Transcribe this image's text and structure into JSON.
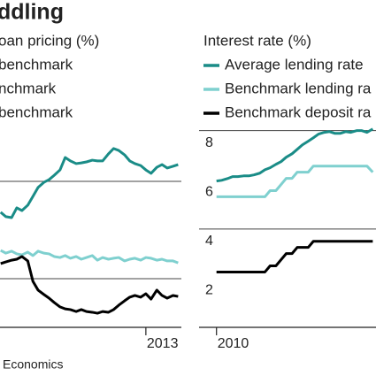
{
  "chart_data": [
    {
      "type": "line",
      "title": "ddling",
      "subtitle": "oan pricing (%)",
      "source": "Economics",
      "x": [
        2010.75,
        2010.83,
        2010.92,
        2011,
        2011.08,
        2011.17,
        2011.25,
        2011.33,
        2011.42,
        2011.5,
        2011.58,
        2011.67,
        2011.75,
        2011.83,
        2011.92,
        2012,
        2012.08,
        2012.17,
        2012.25,
        2012.33,
        2012.42,
        2012.5,
        2012.58,
        2012.67,
        2012.75,
        2012.83,
        2012.92,
        2013,
        2013.08,
        2013.17,
        2013.25,
        2013.33,
        2013.42,
        2013.5
      ],
      "series": [
        {
          "name": "benchmark",
          "color": "#1a8c87",
          "values": [
            47.3,
            45.5,
            45.1,
            49.1,
            48.0,
            50.2,
            53.8,
            57.5,
            59.6,
            60.7,
            62.5,
            64.7,
            69.8,
            68.4,
            67.3,
            67.6,
            68.0,
            68.7,
            68.4,
            68.4,
            71.3,
            73.5,
            72.7,
            70.9,
            68.4,
            67.3,
            66.5,
            64.7,
            63.3,
            65.8,
            66.9,
            65.5,
            66.2,
            66.9
          ]
        },
        {
          "name": "nchmark",
          "color": "#7fd0cf",
          "values": [
            31.6,
            30.5,
            31.3,
            30.2,
            29.8,
            30.9,
            29.5,
            31.3,
            30.5,
            30.2,
            29.1,
            28.7,
            29.5,
            28.4,
            29.1,
            28.0,
            28.7,
            29.5,
            27.6,
            28.7,
            28.0,
            28.4,
            28.7,
            27.3,
            28.0,
            28.4,
            27.6,
            28.7,
            28.4,
            27.6,
            28.0,
            27.3,
            27.3,
            26.5
          ]
        },
        {
          "name": "benchmark",
          "color": "#000000",
          "values": [
            26.2,
            26.9,
            27.6,
            28.0,
            29.1,
            27.3,
            18.9,
            15.3,
            13.5,
            12.0,
            10.2,
            8.4,
            7.6,
            7.3,
            6.5,
            7.3,
            6.5,
            6.2,
            5.8,
            6.5,
            6.2,
            7.3,
            9.1,
            10.9,
            12.4,
            13.1,
            12.4,
            13.8,
            11.6,
            15.3,
            13.1,
            12.0,
            13.1,
            12.7
          ]
        }
      ],
      "xlim": [
        2010.74,
        2013.55
      ],
      "xticks": [
        2013
      ],
      "ylim": [
        0,
        80
      ],
      "gridlines": [
        20,
        60
      ]
    },
    {
      "type": "line",
      "subtitle": "Interest rate (%)",
      "x": [
        2010,
        2010.08,
        2010.17,
        2010.25,
        2010.33,
        2010.42,
        2010.5,
        2010.58,
        2010.67,
        2010.75,
        2010.83,
        2010.92,
        2011,
        2011.08,
        2011.17,
        2011.25,
        2011.33,
        2011.42,
        2011.5,
        2011.58,
        2011.67,
        2011.75,
        2011.83,
        2011.92,
        2012,
        2012.08,
        2012.17,
        2012.25,
        2012.33,
        2012.42
      ],
      "series": [
        {
          "name": "Average lending rate",
          "color": "#1a8c87",
          "values": [
            5.95,
            5.98,
            6.05,
            6.13,
            6.13,
            6.16,
            6.16,
            6.2,
            6.27,
            6.41,
            6.49,
            6.63,
            6.74,
            6.92,
            7.06,
            7.24,
            7.42,
            7.57,
            7.71,
            7.86,
            7.93,
            7.96,
            7.89,
            7.89,
            7.96,
            7.93,
            8.0,
            8.0,
            7.93,
            8.07
          ]
        },
        {
          "name": "Benchmark lending ra",
          "color": "#7fd0cf",
          "values": [
            5.31,
            5.31,
            5.31,
            5.31,
            5.31,
            5.31,
            5.31,
            5.31,
            5.31,
            5.31,
            5.56,
            5.56,
            5.81,
            6.06,
            6.06,
            6.31,
            6.31,
            6.31,
            6.56,
            6.56,
            6.56,
            6.56,
            6.56,
            6.56,
            6.56,
            6.56,
            6.56,
            6.56,
            6.56,
            6.31
          ]
        },
        {
          "name": "Benchmark deposit ra",
          "color": "#000000",
          "values": [
            2.25,
            2.25,
            2.25,
            2.25,
            2.25,
            2.25,
            2.25,
            2.25,
            2.25,
            2.25,
            2.5,
            2.5,
            2.75,
            3.0,
            3.0,
            3.25,
            3.25,
            3.25,
            3.5,
            3.5,
            3.5,
            3.5,
            3.5,
            3.5,
            3.5,
            3.5,
            3.5,
            3.5,
            3.5,
            3.5
          ]
        }
      ],
      "xlim": [
        2009.73,
        2012.47
      ],
      "xticks": [
        2010
      ],
      "ylim": [
        0,
        8.6
      ],
      "yticks": [
        2,
        4,
        6,
        8
      ],
      "gridlines": [
        4,
        8
      ]
    }
  ]
}
